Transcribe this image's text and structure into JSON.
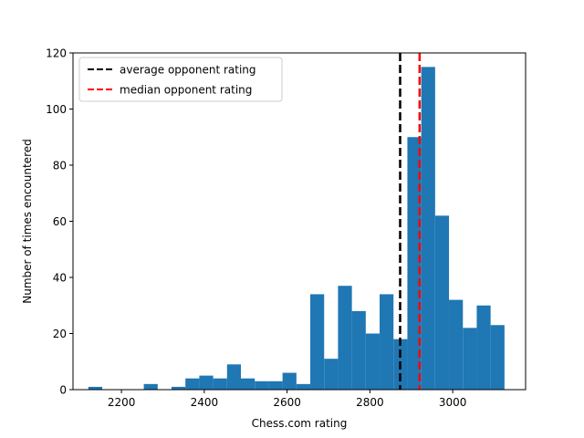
{
  "chart_data": {
    "type": "bar",
    "subtype": "histogram",
    "xlabel": "Chess.com rating",
    "ylabel": "Number of times encountered",
    "xlim": [
      2083,
      3176
    ],
    "ylim": [
      0,
      120
    ],
    "xticks": [
      2200,
      2400,
      2600,
      2800,
      3000
    ],
    "yticks": [
      0,
      20,
      40,
      60,
      80,
      100,
      120
    ],
    "bin_width": 33.5,
    "bin_edges_start": 2120,
    "counts": [
      1,
      0,
      0,
      0,
      2,
      0,
      1,
      4,
      5,
      4,
      9,
      4,
      3,
      3,
      6,
      2,
      34,
      11,
      37,
      28,
      20,
      34,
      18,
      90,
      115,
      62,
      32,
      22,
      30,
      23
    ],
    "bar_color": "#1f77b4",
    "grid": false,
    "reference_lines": [
      {
        "label": "average opponent rating",
        "x": 2873,
        "color": "#000000",
        "style": "dashed"
      },
      {
        "label": "median opponent rating",
        "x": 2920,
        "color": "#ff0000",
        "style": "dashed"
      }
    ],
    "legend": {
      "placement": "top-left",
      "items": [
        "average opponent rating",
        "median opponent rating"
      ]
    }
  }
}
